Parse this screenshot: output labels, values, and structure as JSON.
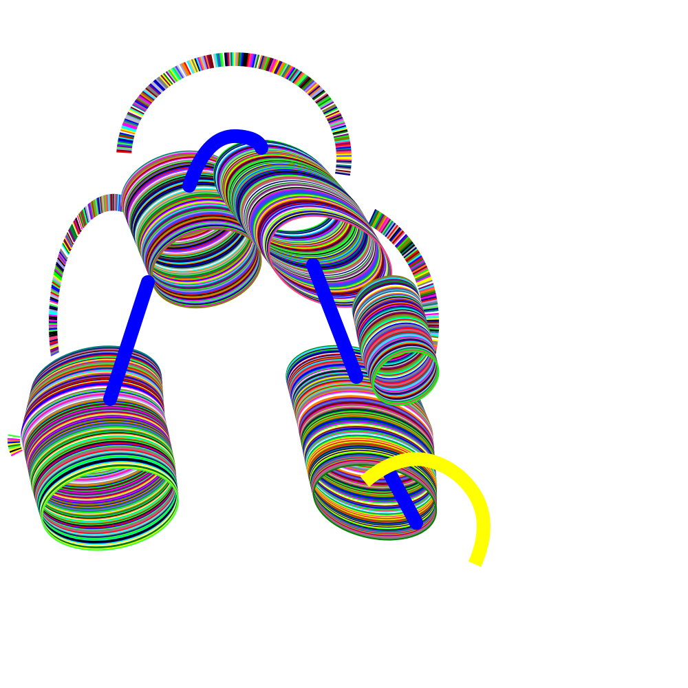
{
  "scene": {
    "background_color": "#ffffff",
    "spine_color": "#0000ff",
    "end_strand_color": "#ffff00",
    "stripe_palette": [
      "#ff0000",
      "#00ff00",
      "#0000ff",
      "#ffff00",
      "#ff00ff",
      "#00ffff",
      "#000000",
      "#808080",
      "#800080",
      "#008000",
      "#000080",
      "#ff8000",
      "#808000",
      "#008080",
      "#800000",
      "#c0c0c0",
      "#4040ff",
      "#40ff40",
      "#ff4080",
      "#a0a0ff",
      "#ffffff"
    ],
    "components": [
      "ribbon-loop",
      "ribbon-coil-left",
      "ribbon-coil-upper",
      "ribbon-coil-right",
      "blue-spine",
      "yellow-end-strand"
    ]
  }
}
